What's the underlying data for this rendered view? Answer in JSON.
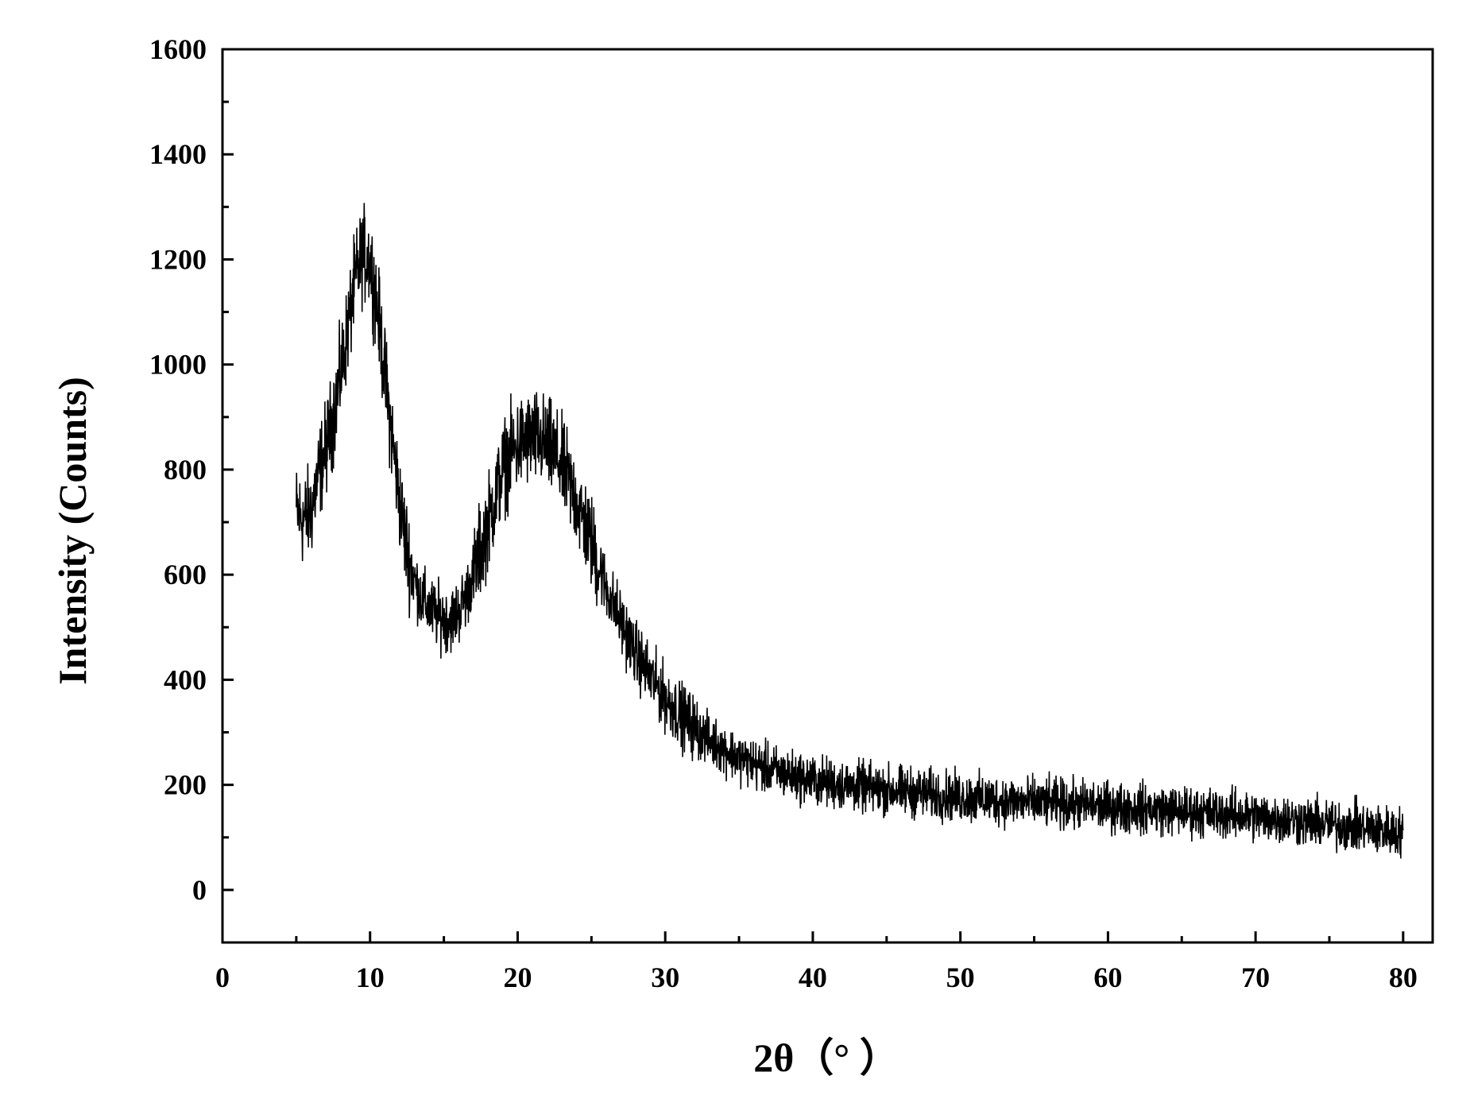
{
  "chart_data": {
    "type": "line",
    "title": "",
    "xlabel": "2θ（°  ）",
    "ylabel": "Intensity (Counts)",
    "xlim": [
      0,
      82
    ],
    "ylim": [
      -100,
      1600
    ],
    "x_ticks": [
      0,
      10,
      20,
      30,
      40,
      50,
      60,
      70,
      80
    ],
    "y_ticks": [
      0,
      200,
      400,
      600,
      800,
      1000,
      1200,
      1400,
      1600
    ],
    "x_tick_labels": [
      "0",
      "10",
      "20",
      "30",
      "40",
      "50",
      "60",
      "70",
      "80"
    ],
    "y_tick_labels": [
      "0",
      "200",
      "400",
      "600",
      "800",
      "1000",
      "1200",
      "1400",
      "1600"
    ],
    "grid": false,
    "line_color": "#000000",
    "series": [
      {
        "name": "",
        "x_range": [
          5,
          80
        ],
        "trend_points": [
          [
            5,
            720
          ],
          [
            5.5,
            705
          ],
          [
            6,
            720
          ],
          [
            6.5,
            790
          ],
          [
            7,
            840
          ],
          [
            7.5,
            900
          ],
          [
            8,
            980
          ],
          [
            8.5,
            1070
          ],
          [
            9,
            1160
          ],
          [
            9.5,
            1210
          ],
          [
            10,
            1200
          ],
          [
            10.5,
            1110
          ],
          [
            11,
            980
          ],
          [
            11.5,
            860
          ],
          [
            12,
            740
          ],
          [
            12.5,
            650
          ],
          [
            13,
            590
          ],
          [
            13.5,
            555
          ],
          [
            14,
            535
          ],
          [
            14.5,
            525
          ],
          [
            15,
            515
          ],
          [
            15.5,
            515
          ],
          [
            16,
            530
          ],
          [
            16.5,
            560
          ],
          [
            17,
            600
          ],
          [
            17.5,
            650
          ],
          [
            18,
            700
          ],
          [
            18.5,
            750
          ],
          [
            19,
            800
          ],
          [
            19.5,
            830
          ],
          [
            20,
            845
          ],
          [
            20.5,
            855
          ],
          [
            21,
            860
          ],
          [
            21.5,
            855
          ],
          [
            22,
            845
          ],
          [
            22.5,
            830
          ],
          [
            23,
            805
          ],
          [
            23.5,
            775
          ],
          [
            24,
            740
          ],
          [
            24.5,
            700
          ],
          [
            25,
            660
          ],
          [
            25.5,
            615
          ],
          [
            26,
            575
          ],
          [
            27,
            510
          ],
          [
            28,
            450
          ],
          [
            29,
            405
          ],
          [
            30,
            365
          ],
          [
            31,
            335
          ],
          [
            32,
            308
          ],
          [
            33,
            285
          ],
          [
            34,
            268
          ],
          [
            35,
            252
          ],
          [
            36,
            240
          ],
          [
            37,
            230
          ],
          [
            38,
            222
          ],
          [
            39,
            215
          ],
          [
            40,
            208
          ],
          [
            42,
            200
          ],
          [
            44,
            193
          ],
          [
            46,
            188
          ],
          [
            48,
            182
          ],
          [
            50,
            176
          ],
          [
            52,
            172
          ],
          [
            54,
            168
          ],
          [
            56,
            165
          ],
          [
            58,
            162
          ],
          [
            60,
            158
          ],
          [
            62,
            155
          ],
          [
            64,
            152
          ],
          [
            66,
            148
          ],
          [
            68,
            145
          ],
          [
            70,
            140
          ],
          [
            72,
            135
          ],
          [
            74,
            128
          ],
          [
            76,
            122
          ],
          [
            78,
            116
          ],
          [
            80,
            108
          ]
        ],
        "noise_amplitude": 55
      }
    ]
  }
}
